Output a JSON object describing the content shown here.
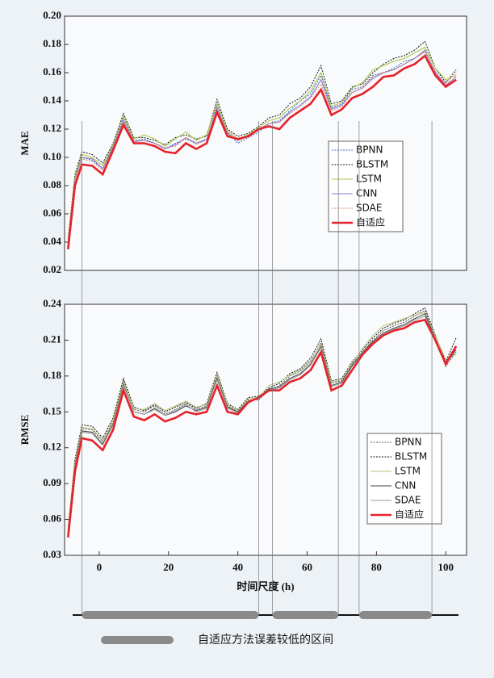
{
  "chart_data": [
    {
      "type": "line",
      "ylabel": "MAE",
      "x": [
        -9,
        -7,
        -5,
        -2,
        1,
        4,
        7,
        10,
        13,
        16,
        19,
        22,
        25,
        28,
        31,
        34,
        37,
        40,
        43,
        46,
        49,
        52,
        55,
        58,
        61,
        64,
        67,
        70,
        73,
        76,
        79,
        82,
        85,
        88,
        91,
        94,
        97,
        100,
        103
      ],
      "xlim": [
        -10,
        106
      ],
      "ylim": [
        0.02,
        0.2
      ],
      "yticks": [
        0.02,
        0.04,
        0.06,
        0.08,
        {
          "value": 0.1,
          "label": "0.10"
        },
        0.12,
        0.14,
        0.16,
        0.18,
        {
          "value": 0.2,
          "label": "0.20"
        }
      ],
      "legend": "center right",
      "series": [
        {
          "name": "BPNN",
          "color": "#3a5fcd",
          "style": "dotted",
          "values": [
            0.04,
            0.085,
            0.1,
            0.098,
            0.092,
            0.108,
            0.128,
            0.112,
            0.113,
            0.11,
            0.106,
            0.11,
            0.113,
            0.11,
            0.112,
            0.137,
            0.118,
            0.11,
            0.114,
            0.118,
            0.124,
            0.126,
            0.133,
            0.14,
            0.145,
            0.158,
            0.135,
            0.138,
            0.148,
            0.15,
            0.158,
            0.16,
            0.163,
            0.168,
            0.17,
            0.175,
            0.16,
            0.15,
            0.155
          ]
        },
        {
          "name": "BLSTM",
          "color": "#111111",
          "style": "dotted",
          "values": [
            0.042,
            0.088,
            0.104,
            0.102,
            0.096,
            0.11,
            0.131,
            0.114,
            0.114,
            0.112,
            0.109,
            0.114,
            0.116,
            0.113,
            0.115,
            0.141,
            0.12,
            0.115,
            0.117,
            0.122,
            0.128,
            0.13,
            0.138,
            0.142,
            0.15,
            0.165,
            0.138,
            0.14,
            0.15,
            0.152,
            0.16,
            0.166,
            0.17,
            0.172,
            0.176,
            0.182,
            0.163,
            0.153,
            0.162
          ]
        },
        {
          "name": "LSTM",
          "color": "#a8c43a",
          "style": "solid",
          "values": [
            0.041,
            0.086,
            0.102,
            0.1,
            0.094,
            0.109,
            0.129,
            0.113,
            0.116,
            0.113,
            0.108,
            0.113,
            0.118,
            0.112,
            0.116,
            0.138,
            0.119,
            0.113,
            0.116,
            0.121,
            0.126,
            0.128,
            0.135,
            0.14,
            0.147,
            0.16,
            0.136,
            0.139,
            0.149,
            0.153,
            0.162,
            0.165,
            0.168,
            0.17,
            0.174,
            0.178,
            0.163,
            0.155,
            0.158
          ]
        },
        {
          "name": "CNN",
          "color": "#8a6fd0",
          "style": "solid",
          "values": [
            0.04,
            0.084,
            0.1,
            0.099,
            0.092,
            0.107,
            0.126,
            0.111,
            0.112,
            0.11,
            0.106,
            0.109,
            0.114,
            0.11,
            0.113,
            0.135,
            0.117,
            0.112,
            0.115,
            0.12,
            0.124,
            0.125,
            0.132,
            0.137,
            0.143,
            0.155,
            0.134,
            0.137,
            0.146,
            0.149,
            0.156,
            0.16,
            0.162,
            0.166,
            0.17,
            0.176,
            0.16,
            0.151,
            0.157
          ]
        },
        {
          "name": "SDAE",
          "color": "#d08a60",
          "style": "dotted",
          "values": [
            0.039,
            0.083,
            0.099,
            0.097,
            0.091,
            0.106,
            0.125,
            0.112,
            0.112,
            0.11,
            0.107,
            0.108,
            0.114,
            0.109,
            0.113,
            0.134,
            0.118,
            0.112,
            0.115,
            0.12,
            0.124,
            0.125,
            0.131,
            0.136,
            0.142,
            0.152,
            0.133,
            0.136,
            0.146,
            0.149,
            0.157,
            0.16,
            0.162,
            0.166,
            0.17,
            0.175,
            0.161,
            0.152,
            0.16
          ]
        },
        {
          "name": "自适应",
          "color": "#e8212a",
          "style": "bold",
          "values": [
            0.035,
            0.08,
            0.095,
            0.094,
            0.088,
            0.105,
            0.123,
            0.11,
            0.11,
            0.108,
            0.104,
            0.103,
            0.11,
            0.106,
            0.11,
            0.132,
            0.115,
            0.113,
            0.115,
            0.12,
            0.122,
            0.12,
            0.128,
            0.133,
            0.138,
            0.148,
            0.13,
            0.134,
            0.142,
            0.145,
            0.15,
            0.157,
            0.158,
            0.163,
            0.166,
            0.172,
            0.158,
            0.15,
            0.155
          ]
        }
      ]
    },
    {
      "type": "line",
      "ylabel": "RMSE",
      "xlabel": "时间尺度 (h)",
      "x": [
        -9,
        -7,
        -5,
        -2,
        1,
        4,
        7,
        10,
        13,
        16,
        19,
        22,
        25,
        28,
        31,
        34,
        37,
        40,
        43,
        46,
        49,
        52,
        55,
        58,
        61,
        64,
        67,
        70,
        73,
        76,
        79,
        82,
        85,
        88,
        91,
        94,
        97,
        100,
        103
      ],
      "xlim": [
        -10,
        106
      ],
      "xticks": [
        0,
        20,
        40,
        60,
        80,
        100
      ],
      "ylim": [
        0.03,
        0.24
      ],
      "yticks": [
        0.03,
        0.06,
        0.09,
        0.12,
        0.15,
        0.18,
        0.21,
        0.24
      ],
      "legend": "lower right",
      "series": [
        {
          "name": "BPNN",
          "color": "#555555",
          "style": "dotted",
          "values": [
            0.05,
            0.108,
            0.136,
            0.135,
            0.125,
            0.142,
            0.176,
            0.152,
            0.15,
            0.155,
            0.148,
            0.152,
            0.157,
            0.152,
            0.155,
            0.18,
            0.155,
            0.15,
            0.16,
            0.16,
            0.168,
            0.172,
            0.18,
            0.184,
            0.192,
            0.208,
            0.174,
            0.176,
            0.19,
            0.2,
            0.21,
            0.218,
            0.222,
            0.225,
            0.23,
            0.235,
            0.212,
            0.188,
            0.2
          ]
        },
        {
          "name": "BLSTM",
          "color": "#111111",
          "style": "dotted",
          "values": [
            0.052,
            0.11,
            0.139,
            0.138,
            0.128,
            0.145,
            0.178,
            0.154,
            0.151,
            0.156,
            0.15,
            0.154,
            0.158,
            0.153,
            0.157,
            0.183,
            0.157,
            0.152,
            0.162,
            0.163,
            0.17,
            0.174,
            0.182,
            0.186,
            0.195,
            0.211,
            0.176,
            0.178,
            0.192,
            0.202,
            0.212,
            0.22,
            0.224,
            0.227,
            0.232,
            0.237,
            0.214,
            0.192,
            0.212
          ]
        },
        {
          "name": "LSTM",
          "color": "#b8c070",
          "style": "solid",
          "values": [
            0.051,
            0.107,
            0.137,
            0.136,
            0.126,
            0.143,
            0.175,
            0.153,
            0.152,
            0.157,
            0.151,
            0.155,
            0.159,
            0.154,
            0.156,
            0.181,
            0.156,
            0.151,
            0.161,
            0.162,
            0.172,
            0.175,
            0.181,
            0.185,
            0.193,
            0.207,
            0.175,
            0.177,
            0.191,
            0.203,
            0.214,
            0.222,
            0.225,
            0.228,
            0.231,
            0.233,
            0.213,
            0.194,
            0.198
          ]
        },
        {
          "name": "CNN",
          "color": "#444444",
          "style": "solid",
          "values": [
            0.049,
            0.105,
            0.134,
            0.133,
            0.123,
            0.14,
            0.173,
            0.15,
            0.148,
            0.153,
            0.147,
            0.15,
            0.155,
            0.151,
            0.154,
            0.178,
            0.154,
            0.15,
            0.159,
            0.162,
            0.169,
            0.171,
            0.178,
            0.182,
            0.19,
            0.205,
            0.172,
            0.175,
            0.189,
            0.2,
            0.209,
            0.216,
            0.22,
            0.223,
            0.228,
            0.232,
            0.211,
            0.19,
            0.202
          ]
        },
        {
          "name": "SDAE",
          "color": "#9a9a9a",
          "style": "solid",
          "values": [
            0.048,
            0.104,
            0.133,
            0.132,
            0.122,
            0.139,
            0.172,
            0.15,
            0.148,
            0.152,
            0.147,
            0.151,
            0.156,
            0.15,
            0.153,
            0.177,
            0.153,
            0.149,
            0.159,
            0.161,
            0.168,
            0.17,
            0.177,
            0.181,
            0.189,
            0.204,
            0.171,
            0.174,
            0.188,
            0.199,
            0.208,
            0.215,
            0.219,
            0.222,
            0.227,
            0.23,
            0.21,
            0.191,
            0.204
          ]
        },
        {
          "name": "自适应",
          "color": "#e8212a",
          "style": "bold",
          "values": [
            0.045,
            0.1,
            0.128,
            0.126,
            0.118,
            0.135,
            0.168,
            0.146,
            0.143,
            0.148,
            0.142,
            0.145,
            0.15,
            0.148,
            0.15,
            0.172,
            0.15,
            0.148,
            0.158,
            0.162,
            0.168,
            0.168,
            0.175,
            0.178,
            0.185,
            0.2,
            0.168,
            0.172,
            0.185,
            0.198,
            0.207,
            0.214,
            0.218,
            0.22,
            0.225,
            0.227,
            0.21,
            0.19,
            0.205
          ]
        }
      ]
    }
  ],
  "highlight": {
    "label": "自适应方法误差较低的区间",
    "intervals": [
      [
        -5,
        46
      ],
      [
        50,
        69
      ],
      [
        75,
        96
      ]
    ]
  }
}
